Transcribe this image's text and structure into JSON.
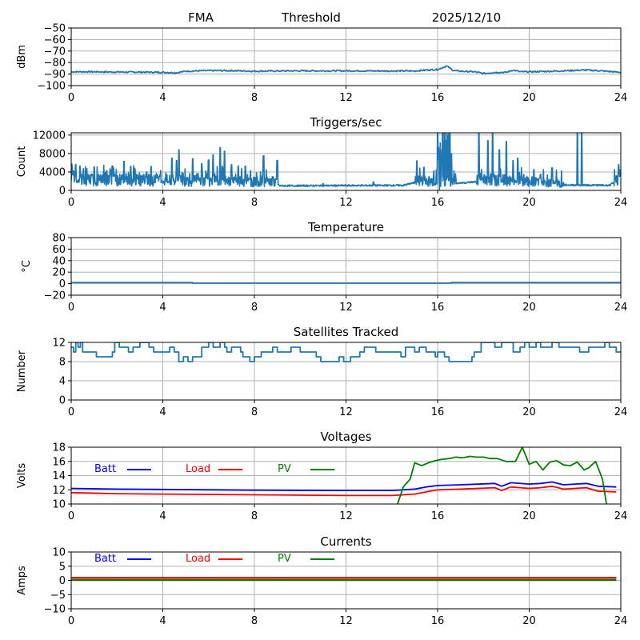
{
  "figure": {
    "header": {
      "station": "FMA",
      "label": "Threshold",
      "date": "2025/12/10"
    }
  },
  "colors": {
    "series": "#1f77b4",
    "batt": "#0000ff",
    "load": "#ff0000",
    "pv": "#008000",
    "grid": "#b0b0b0"
  },
  "chart_data": [
    {
      "type": "line",
      "title": "",
      "ylabel": "dBm",
      "xlim": [
        0,
        24
      ],
      "ylim": [
        -100,
        -50
      ],
      "xticks": [
        0,
        4,
        8,
        12,
        16,
        20,
        24
      ],
      "yticks": [
        -100,
        -90,
        -80,
        -70,
        -60,
        -50
      ],
      "ytick_labels": [
        "−100",
        "−90",
        "−80",
        "−70",
        "−60",
        "−50"
      ],
      "grid": true,
      "series": [
        {
          "name": "threshold",
          "color": "#1f77b4",
          "noise": 0.6,
          "x": [
            0,
            1,
            2,
            3,
            4,
            4.6,
            5,
            6,
            7,
            8,
            9,
            10,
            12,
            14,
            15,
            15.5,
            16,
            16.4,
            16.7,
            17,
            17.6,
            18,
            18.5,
            19,
            19.3,
            19.6,
            20,
            21,
            22,
            22.5,
            23,
            24
          ],
          "y": [
            -88,
            -88,
            -88.2,
            -88.3,
            -88.5,
            -88.8,
            -87.5,
            -87,
            -87,
            -87.5,
            -87.3,
            -87.2,
            -87.2,
            -87.3,
            -87.3,
            -86.5,
            -86,
            -83,
            -87,
            -87.5,
            -88,
            -89.5,
            -88.5,
            -88.5,
            -86.5,
            -88,
            -88,
            -87.5,
            -86.8,
            -86.5,
            -87,
            -88.5
          ]
        }
      ]
    },
    {
      "type": "line",
      "title": "Triggers/sec",
      "ylabel": "Count",
      "xlim": [
        0,
        24
      ],
      "ylim": [
        0,
        12500
      ],
      "xticks": [
        0,
        4,
        8,
        12,
        16,
        20,
        24
      ],
      "yticks": [
        0,
        4000,
        8000,
        12000
      ],
      "ytick_labels": [
        "0",
        "4000",
        "8000",
        "12000"
      ],
      "grid": true,
      "series": [
        {
          "name": "triggers",
          "color": "#1f77b4",
          "base": [
            [
              0,
              2000
            ],
            [
              4,
              1800
            ],
            [
              9,
              1500
            ],
            [
              9.1,
              1000
            ],
            [
              14.5,
              1100
            ],
            [
              15,
              1700
            ],
            [
              17,
              1600
            ],
            [
              18,
              2000
            ],
            [
              20,
              1600
            ],
            [
              21,
              1200
            ],
            [
              23.5,
              1100
            ],
            [
              24,
              2500
            ]
          ],
          "spikes": [
            [
              0.1,
              4300
            ],
            [
              0.2,
              5600
            ],
            [
              0.5,
              3500
            ],
            [
              1.0,
              5100
            ],
            [
              1.5,
              4000
            ],
            [
              1.8,
              5300
            ],
            [
              2.3,
              6300
            ],
            [
              2.6,
              5200
            ],
            [
              3.3,
              4000
            ],
            [
              4.4,
              7000
            ],
            [
              4.6,
              6500
            ],
            [
              4.7,
              8800
            ],
            [
              5.3,
              6900
            ],
            [
              5.7,
              5800
            ],
            [
              6.0,
              6600
            ],
            [
              6.2,
              7700
            ],
            [
              6.5,
              9300
            ],
            [
              6.7,
              8500
            ],
            [
              7.0,
              5600
            ],
            [
              7.3,
              5300
            ],
            [
              7.6,
              5300
            ],
            [
              8.4,
              7500
            ],
            [
              8.8,
              3000
            ],
            [
              9.0,
              6500
            ],
            [
              11.0,
              1500
            ],
            [
              13.2,
              1800
            ],
            [
              15.1,
              6400
            ],
            [
              15.4,
              5000
            ],
            [
              16.0,
              12500
            ],
            [
              16.1,
              12500
            ],
            [
              16.2,
              12500
            ],
            [
              16.3,
              12500
            ],
            [
              16.4,
              12500
            ],
            [
              16.5,
              12500
            ],
            [
              16.6,
              8000
            ],
            [
              17.8,
              12500
            ],
            [
              18.2,
              10800
            ],
            [
              18.4,
              12500
            ],
            [
              18.7,
              8800
            ],
            [
              19.0,
              10600
            ],
            [
              19.3,
              6500
            ],
            [
              19.5,
              7000
            ],
            [
              20.2,
              4500
            ],
            [
              20.5,
              3500
            ],
            [
              21.0,
              4900
            ],
            [
              22.1,
              12500
            ],
            [
              22.3,
              12500
            ],
            [
              23.9,
              5600
            ]
          ],
          "dense_regions": [
            [
              4.3,
              9.0
            ],
            [
              15.0,
              16.8
            ],
            [
              17.7,
              21.5
            ],
            [
              23.7,
              24
            ]
          ]
        }
      ]
    },
    {
      "type": "line",
      "title": "Temperature",
      "ylabel": "°C",
      "xlim": [
        0,
        24
      ],
      "ylim": [
        -20,
        80
      ],
      "xticks": [
        0,
        4,
        8,
        12,
        16,
        20,
        24
      ],
      "yticks": [
        -20,
        0,
        20,
        40,
        60,
        80
      ],
      "ytick_labels": [
        "−20",
        "0",
        "20",
        "40",
        "60",
        "80"
      ],
      "grid": true,
      "series": [
        {
          "name": "temperature",
          "color": "#1f77b4",
          "step": true,
          "x": [
            0,
            5.3,
            5.3,
            16.6,
            16.6,
            24
          ],
          "y": [
            2,
            2,
            1,
            1,
            2,
            2
          ]
        }
      ]
    },
    {
      "type": "line",
      "title": "Satellites Tracked",
      "ylabel": "Number",
      "xlim": [
        0,
        24
      ],
      "ylim": [
        0,
        12
      ],
      "xticks": [
        0,
        4,
        8,
        12,
        16,
        20,
        24
      ],
      "yticks": [
        0,
        4,
        8,
        12
      ],
      "ytick_labels": [
        "0",
        "4",
        "8",
        "12"
      ],
      "grid": true,
      "series": [
        {
          "name": "satellites",
          "color": "#1f77b4",
          "step": true,
          "x": [
            0,
            0.1,
            0.2,
            0.3,
            0.4,
            0.5,
            0.8,
            1.1,
            1.6,
            1.8,
            1.9,
            2.1,
            2.5,
            2.7,
            3.0,
            3.4,
            3.6,
            4.0,
            4.3,
            4.5,
            4.7,
            4.9,
            5.1,
            5.3,
            5.7,
            6.0,
            6.2,
            6.5,
            6.7,
            6.8,
            7.0,
            7.4,
            7.5,
            7.8,
            8.0,
            8.3,
            8.8,
            9.0,
            9.4,
            9.6,
            10.0,
            10.7,
            10.9,
            11.4,
            11.6,
            11.7,
            11.9,
            12.2,
            12.6,
            12.8,
            13.1,
            13.3,
            13.5,
            14.4,
            14.6,
            15.0,
            15.2,
            15.5,
            15.9,
            16.0,
            16.3,
            16.5,
            16.9,
            17.5,
            17.6,
            17.9,
            18.5,
            18.8,
            19.3,
            19.6,
            19.8,
            20.0,
            20.3,
            20.5,
            21.0,
            21.3,
            21.8,
            22.2,
            22.6,
            23.0,
            23.3,
            23.5,
            23.8,
            24.0
          ],
          "y": [
            11,
            10,
            12,
            11,
            12,
            10,
            10,
            9,
            9,
            10,
            12,
            11,
            10,
            11,
            12,
            11,
            10,
            10,
            11,
            10,
            8,
            9,
            8,
            9,
            11,
            12,
            11,
            12,
            11,
            10,
            11,
            10,
            9,
            8,
            9,
            10,
            11,
            10,
            10,
            11,
            10,
            9,
            8,
            8,
            8,
            9,
            8,
            9,
            10,
            11,
            11,
            10,
            10,
            9,
            11,
            10,
            11,
            10,
            9,
            10,
            9,
            8,
            8,
            9,
            10,
            12,
            11,
            12,
            10,
            11,
            12,
            11,
            12,
            11,
            12,
            11,
            11,
            10,
            11,
            11,
            12,
            11,
            10,
            10
          ]
        }
      ]
    },
    {
      "type": "line",
      "title": "Voltages",
      "ylabel": "Volts",
      "xlim": [
        0,
        24
      ],
      "ylim": [
        10,
        18
      ],
      "xticks": [
        0,
        4,
        8,
        12,
        16,
        20,
        24
      ],
      "yticks": [
        10,
        12,
        14,
        16,
        18
      ],
      "ytick_labels": [
        "10",
        "12",
        "14",
        "16",
        "18"
      ],
      "grid": true,
      "legend": {
        "placement": "upper-left-inline",
        "entries": [
          {
            "label": "Batt",
            "color": "#0000ff"
          },
          {
            "label": "Load",
            "color": "#ff0000"
          },
          {
            "label": "PV",
            "color": "#008000"
          }
        ]
      },
      "series": [
        {
          "name": "Batt",
          "color": "#0000ff",
          "x": [
            0,
            2,
            4,
            8,
            12,
            14,
            15,
            15.5,
            16,
            17,
            18.5,
            18.8,
            19.2,
            20,
            20.5,
            21,
            21.5,
            22,
            22.5,
            23,
            23.8
          ],
          "y": [
            12.2,
            12.1,
            12.05,
            11.95,
            11.9,
            11.9,
            12.1,
            12.4,
            12.6,
            12.7,
            12.9,
            12.5,
            13.0,
            12.8,
            12.9,
            13.1,
            12.7,
            12.8,
            12.9,
            12.5,
            12.4
          ]
        },
        {
          "name": "Load",
          "color": "#ff0000",
          "x": [
            0,
            2,
            4,
            8,
            12,
            14,
            15,
            15.5,
            16,
            17,
            18.5,
            18.8,
            19.2,
            20,
            20.5,
            21,
            21.5,
            22,
            22.5,
            23,
            23.8
          ],
          "y": [
            11.6,
            11.45,
            11.4,
            11.3,
            11.2,
            11.2,
            11.4,
            11.7,
            12.0,
            12.1,
            12.3,
            11.9,
            12.4,
            12.2,
            12.3,
            12.5,
            12.1,
            12.2,
            12.3,
            11.8,
            11.7
          ]
        },
        {
          "name": "PV",
          "color": "#008000",
          "x": [
            14.2,
            14.5,
            14.8,
            15.0,
            15.3,
            15.6,
            15.9,
            16.2,
            16.5,
            16.8,
            17.1,
            17.4,
            17.7,
            18.0,
            18.3,
            18.6,
            19.0,
            19.4,
            19.7,
            20.0,
            20.3,
            20.6,
            20.9,
            21.2,
            21.5,
            21.8,
            22.1,
            22.4,
            22.6,
            22.9,
            23.2,
            23.4
          ],
          "y": [
            9.5,
            12.4,
            13.5,
            15.8,
            15.4,
            15.8,
            16.1,
            16.3,
            16.4,
            16.6,
            16.5,
            16.7,
            16.6,
            16.6,
            16.4,
            16.4,
            16.0,
            16.0,
            18.0,
            15.6,
            16.0,
            14.8,
            15.9,
            16.1,
            15.5,
            15.4,
            15.9,
            14.8,
            15.1,
            16.0,
            13.5,
            9.5
          ]
        }
      ]
    },
    {
      "type": "line",
      "title": "Currents",
      "ylabel": "Amps",
      "xlim": [
        0,
        24
      ],
      "ylim": [
        -10,
        10
      ],
      "xticks": [
        0,
        4,
        8,
        12,
        16,
        20,
        24
      ],
      "yticks": [
        -10,
        -5,
        0,
        5,
        10
      ],
      "ytick_labels": [
        "−10",
        "−5",
        "0",
        "5",
        "10"
      ],
      "grid": true,
      "legend": {
        "placement": "upper-left-inline",
        "entries": [
          {
            "label": "Batt",
            "color": "#0000ff"
          },
          {
            "label": "Load",
            "color": "#ff0000"
          },
          {
            "label": "PV",
            "color": "#008000"
          }
        ]
      },
      "series": [
        {
          "name": "Batt",
          "color": "#0000ff",
          "x": [
            0,
            23.8
          ],
          "y": [
            0.9,
            0.9
          ]
        },
        {
          "name": "Load",
          "color": "#ff0000",
          "x": [
            0,
            23.8
          ],
          "y": [
            0.9,
            0.9
          ]
        },
        {
          "name": "PV",
          "color": "#008000",
          "x": [
            0,
            23.8
          ],
          "y": [
            0.1,
            0.1
          ]
        }
      ]
    }
  ]
}
